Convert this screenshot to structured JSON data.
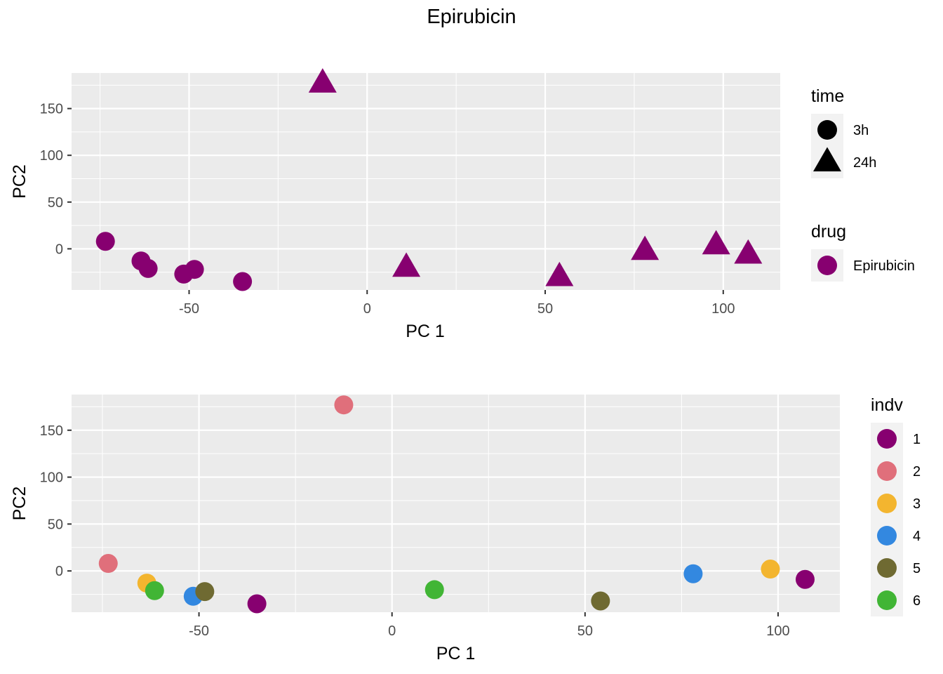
{
  "title": "Epirubicin",
  "colors": {
    "panel_bg": "#ebebeb",
    "grid": "#ffffff",
    "tick_text": "#4d4d4d",
    "tick_mark": "#333333",
    "drug_epirubicin": "#870070"
  },
  "chart_data": [
    {
      "type": "scatter",
      "title": "",
      "xlabel": "PC 1",
      "ylabel": "PC2",
      "xlim": [
        -83,
        116
      ],
      "ylim": [
        -44,
        188
      ],
      "xticks": [
        -50,
        0,
        50,
        100
      ],
      "yticks": [
        0,
        50,
        100,
        150
      ],
      "grid": true,
      "legend_position": "right",
      "legends": [
        {
          "title": "time",
          "entries": [
            {
              "label": "3h",
              "shape": "circle",
              "color": "#000000"
            },
            {
              "label": "24h",
              "shape": "triangle",
              "color": "#000000"
            }
          ]
        },
        {
          "title": "drug",
          "entries": [
            {
              "label": "Epirubicin",
              "shape": "circle",
              "color": "#870070"
            }
          ]
        }
      ],
      "points": [
        {
          "x": -73.5,
          "y": 8,
          "time": "3h",
          "color": "#870070"
        },
        {
          "x": -63.5,
          "y": -13,
          "time": "3h",
          "color": "#870070"
        },
        {
          "x": -61.5,
          "y": -21,
          "time": "3h",
          "color": "#870070"
        },
        {
          "x": -51.5,
          "y": -27,
          "time": "3h",
          "color": "#870070"
        },
        {
          "x": -48.5,
          "y": -22,
          "time": "3h",
          "color": "#870070"
        },
        {
          "x": -35,
          "y": -35,
          "time": "3h",
          "color": "#870070"
        },
        {
          "x": -12.5,
          "y": 177,
          "time": "24h",
          "color": "#870070"
        },
        {
          "x": 11,
          "y": -20,
          "time": "24h",
          "color": "#870070"
        },
        {
          "x": 54,
          "y": -30,
          "time": "24h",
          "color": "#870070"
        },
        {
          "x": 78,
          "y": -2,
          "time": "24h",
          "color": "#870070"
        },
        {
          "x": 98,
          "y": 4,
          "time": "24h",
          "color": "#870070"
        },
        {
          "x": 107,
          "y": -6,
          "time": "24h",
          "color": "#870070"
        }
      ]
    },
    {
      "type": "scatter",
      "title": "",
      "xlabel": "PC 1",
      "ylabel": "PC2",
      "xlim": [
        -83,
        116
      ],
      "ylim": [
        -44,
        188
      ],
      "xticks": [
        -50,
        0,
        50,
        100
      ],
      "yticks": [
        0,
        50,
        100,
        150
      ],
      "grid": true,
      "legend_position": "right",
      "legends": [
        {
          "title": "indv",
          "entries": [
            {
              "label": "1",
              "shape": "circle",
              "color": "#870070"
            },
            {
              "label": "2",
              "shape": "circle",
              "color": "#e06f7b"
            },
            {
              "label": "3",
              "shape": "circle",
              "color": "#f3b52f"
            },
            {
              "label": "4",
              "shape": "circle",
              "color": "#3388e0"
            },
            {
              "label": "5",
              "shape": "circle",
              "color": "#6f6a32"
            },
            {
              "label": "6",
              "shape": "circle",
              "color": "#41b535"
            }
          ]
        }
      ],
      "points": [
        {
          "x": -73.5,
          "y": 8,
          "indv": "2",
          "color": "#e06f7b"
        },
        {
          "x": -63.5,
          "y": -13,
          "indv": "3",
          "color": "#f3b52f"
        },
        {
          "x": -61.5,
          "y": -21,
          "indv": "6",
          "color": "#41b535"
        },
        {
          "x": -51.5,
          "y": -27,
          "indv": "4",
          "color": "#3388e0"
        },
        {
          "x": -48.5,
          "y": -22,
          "indv": "5",
          "color": "#6f6a32"
        },
        {
          "x": -35,
          "y": -35,
          "indv": "1",
          "color": "#870070"
        },
        {
          "x": -12.5,
          "y": 177,
          "indv": "2",
          "color": "#e06f7b"
        },
        {
          "x": 11,
          "y": -20,
          "indv": "6",
          "color": "#41b535"
        },
        {
          "x": 54,
          "y": -32,
          "indv": "5",
          "color": "#6f6a32"
        },
        {
          "x": 78,
          "y": -3,
          "indv": "4",
          "color": "#3388e0"
        },
        {
          "x": 98,
          "y": 2,
          "indv": "3",
          "color": "#f3b52f"
        },
        {
          "x": 107,
          "y": -9,
          "indv": "1",
          "color": "#870070"
        }
      ]
    }
  ]
}
